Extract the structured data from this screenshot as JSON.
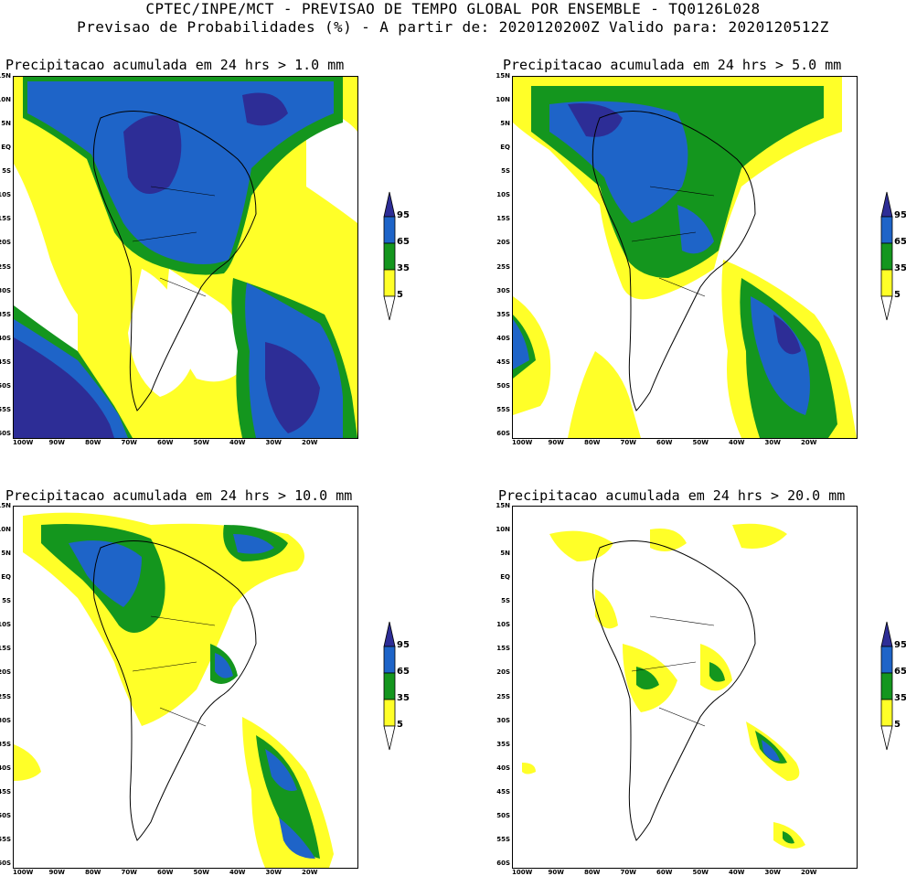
{
  "header": {
    "line1": "CPTEC/INPE/MCT - PREVISAO DE TEMPO GLOBAL POR ENSEMBLE - TQ0126L028",
    "line2": "Previsao de Probabilidades (%) -  A partir de: 2020120200Z  Valido para: 2020120512Z"
  },
  "panels": [
    {
      "title": "Precipitacao acumulada em 24 hrs > 1.0 mm"
    },
    {
      "title": "Precipitacao acumulada em 24 hrs > 5.0 mm"
    },
    {
      "title": "Precipitacao acumulada em 24 hrs > 10.0 mm"
    },
    {
      "title": "Precipitacao acumulada em 24 hrs > 20.0 mm"
    }
  ],
  "axes": {
    "lat_labels": [
      "15N",
      "10N",
      "5N",
      "EQ",
      "5S",
      "10S",
      "15S",
      "20S",
      "25S",
      "30S",
      "35S",
      "40S",
      "45S",
      "50S",
      "55S",
      "60S"
    ],
    "lon_labels": [
      "100W",
      "90W",
      "80W",
      "70W",
      "60W",
      "50W",
      "40W",
      "30W",
      "20W"
    ]
  },
  "legend": {
    "labels": [
      "95",
      "65",
      "35",
      "5"
    ],
    "colors": {
      "c95": "#2d2d96",
      "c65": "#1e64c8",
      "c35": "#14961e",
      "c5": "#ffff28",
      "white": "#ffffff"
    }
  }
}
